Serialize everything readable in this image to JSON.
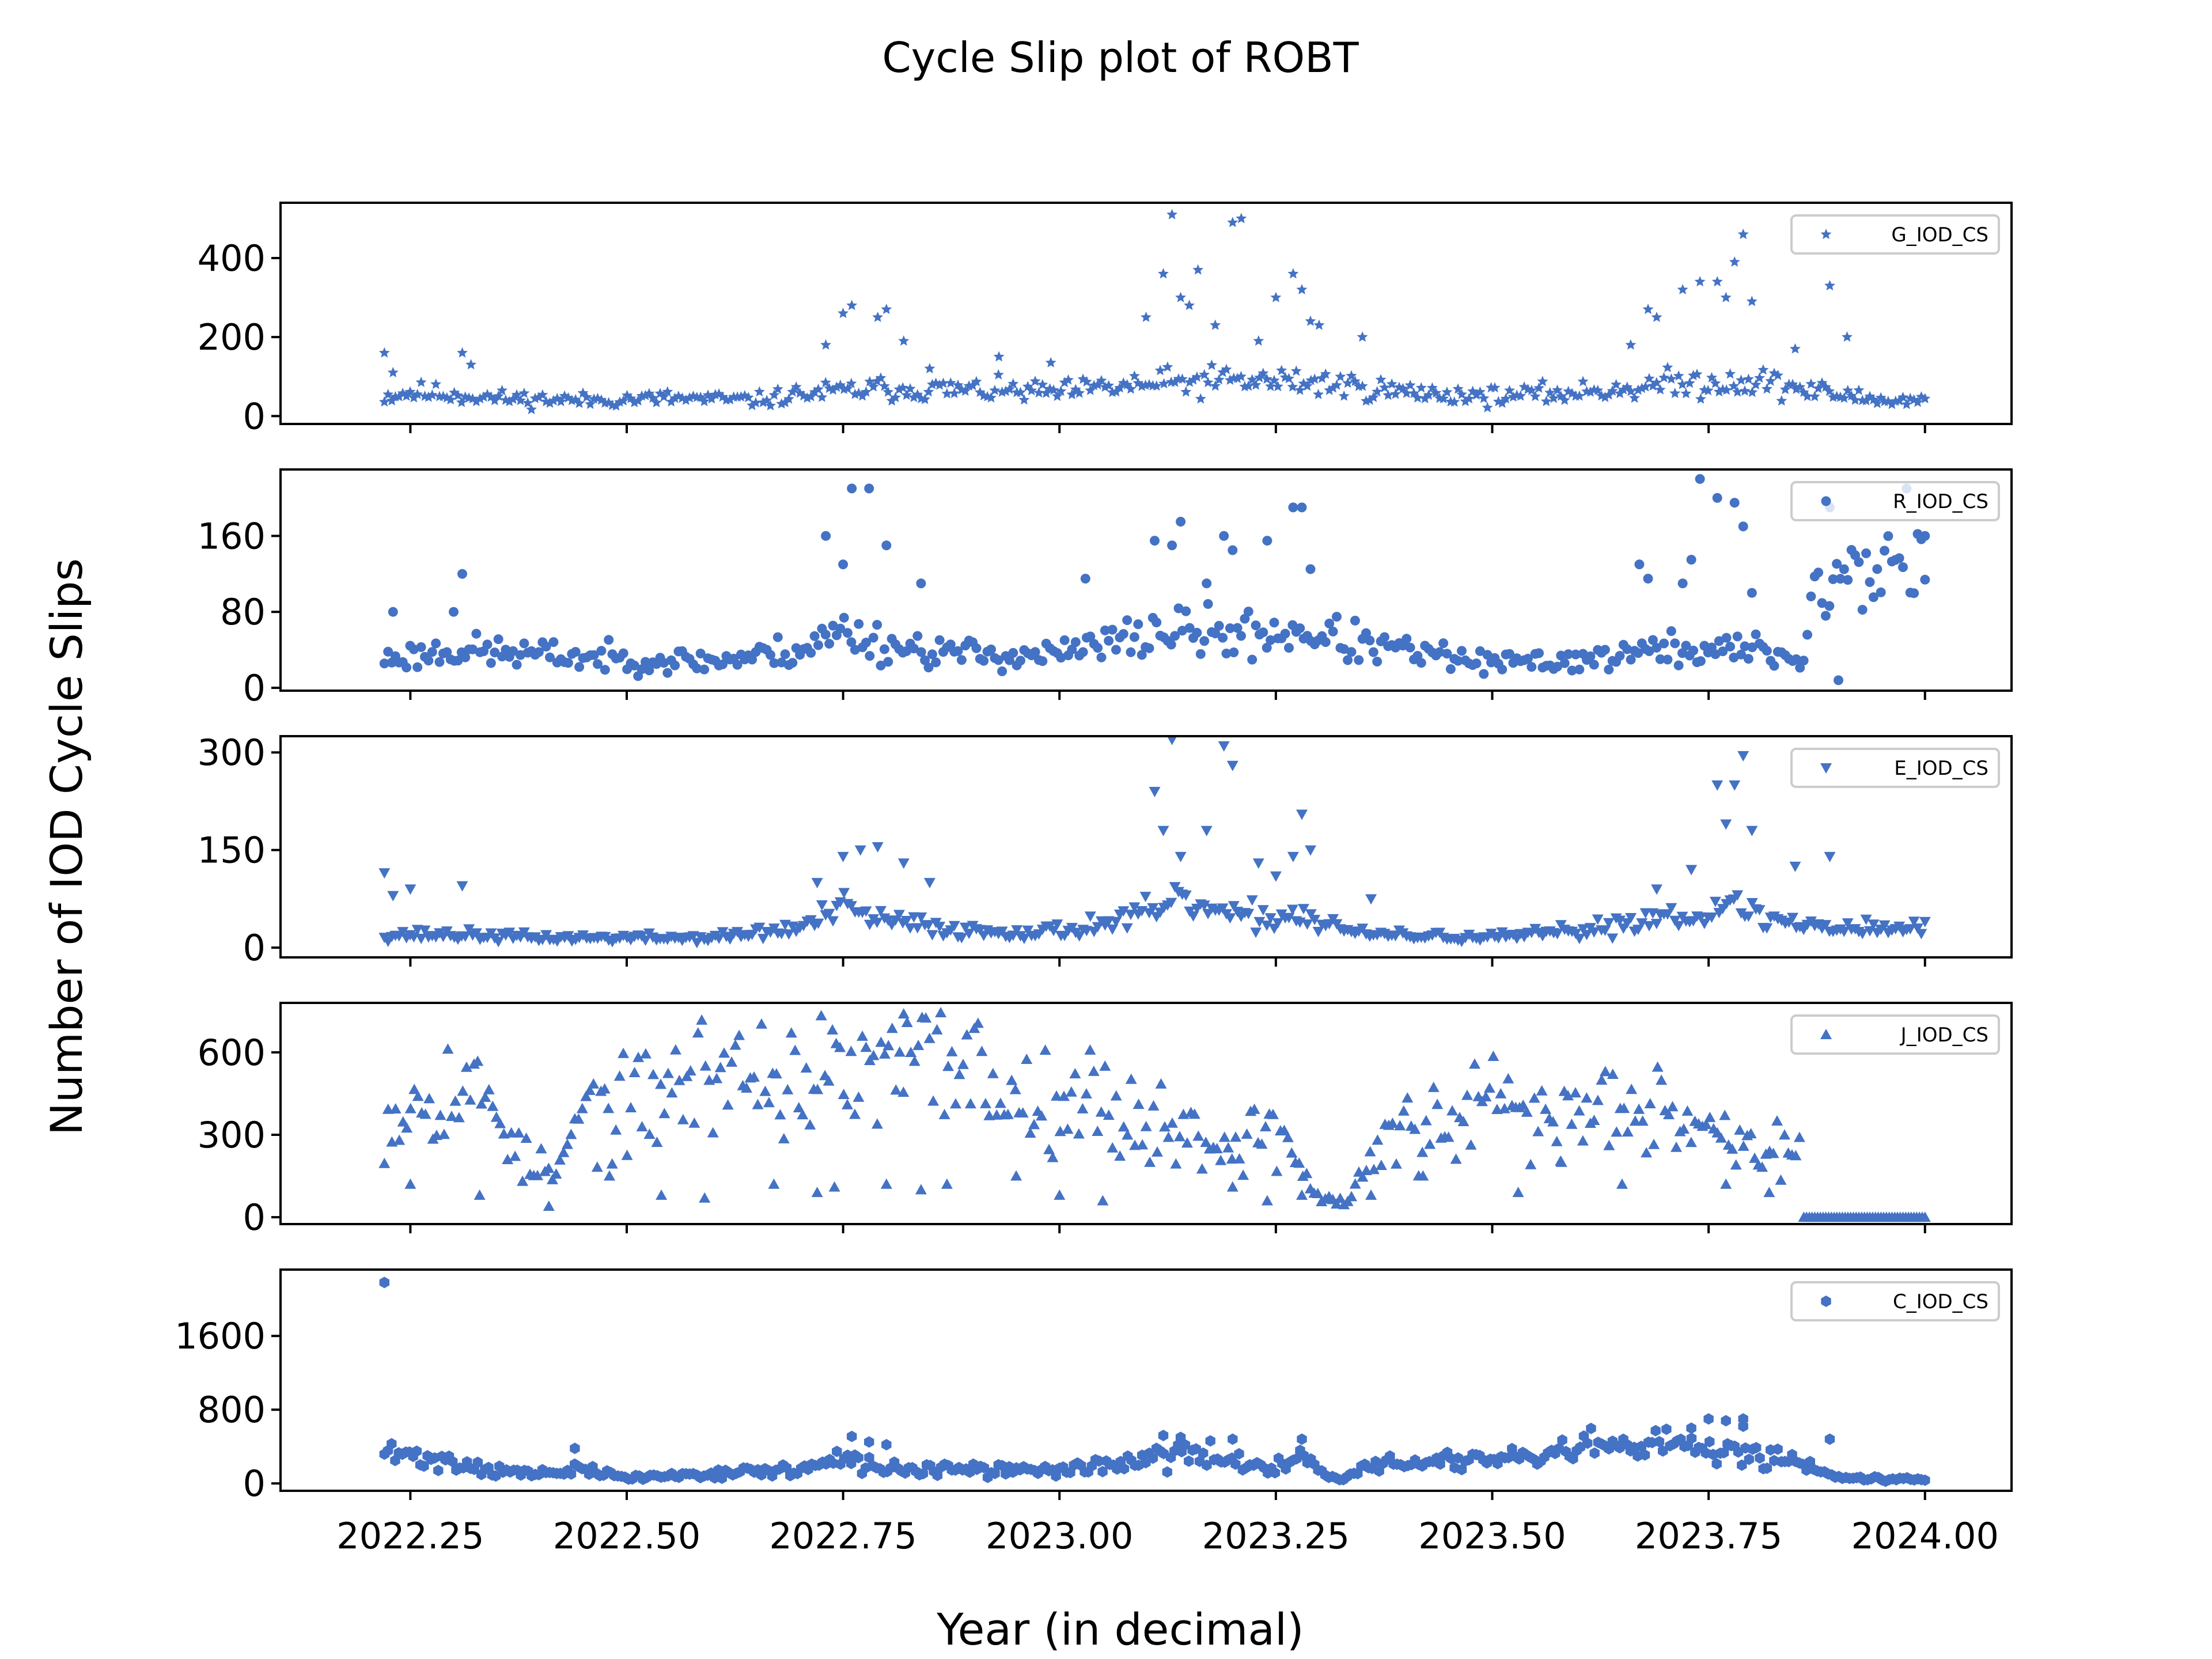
{
  "page": {
    "title": "Cycle Slip plot of ROBT",
    "xlabel": "Year (in decimal)",
    "ylabel": "Number of IOD Cycle Slips"
  },
  "colors": {
    "marker": "#4472c4",
    "axes": "#000000",
    "background": "#ffffff"
  },
  "chart_data": [
    {
      "type": "scatter",
      "series_label": "G_IOD_CS",
      "marker": "star",
      "legend_position": "top-right",
      "ylim": [
        -20,
        540
      ],
      "yticks": [
        0,
        200,
        400
      ],
      "xlim": [
        2022.1,
        2024.1
      ],
      "xticks": [
        2022.25,
        2022.5,
        2022.75,
        2023.0,
        2023.25,
        2023.5,
        2023.75,
        2024.0
      ],
      "grid": false,
      "anchors": [
        [
          2022.22,
          50
        ],
        [
          2022.25,
          60
        ],
        [
          2022.3,
          55
        ],
        [
          2022.35,
          45
        ],
        [
          2022.45,
          40
        ],
        [
          2022.55,
          45
        ],
        [
          2022.65,
          40
        ],
        [
          2022.7,
          55
        ],
        [
          2022.8,
          70
        ],
        [
          2022.9,
          65
        ],
        [
          2023.0,
          60
        ],
        [
          2023.1,
          80
        ],
        [
          2023.2,
          90
        ],
        [
          2023.3,
          85
        ],
        [
          2023.4,
          60
        ],
        [
          2023.5,
          50
        ],
        [
          2023.6,
          60
        ],
        [
          2023.7,
          80
        ],
        [
          2023.8,
          90
        ],
        [
          2023.88,
          60
        ],
        [
          2023.95,
          40
        ],
        [
          2024.0,
          40
        ]
      ],
      "spikes": [
        [
          2022.22,
          160
        ],
        [
          2022.23,
          110
        ],
        [
          2022.31,
          160
        ],
        [
          2022.32,
          130
        ],
        [
          2022.73,
          180
        ],
        [
          2022.75,
          260
        ],
        [
          2022.76,
          280
        ],
        [
          2022.79,
          250
        ],
        [
          2022.8,
          270
        ],
        [
          2022.82,
          190
        ],
        [
          2022.85,
          120
        ],
        [
          2022.93,
          150
        ],
        [
          2022.99,
          135
        ],
        [
          2023.1,
          250
        ],
        [
          2023.12,
          360
        ],
        [
          2023.13,
          510
        ],
        [
          2023.14,
          300
        ],
        [
          2023.15,
          280
        ],
        [
          2023.16,
          370
        ],
        [
          2023.18,
          230
        ],
        [
          2023.2,
          490
        ],
        [
          2023.21,
          500
        ],
        [
          2023.23,
          190
        ],
        [
          2023.25,
          300
        ],
        [
          2023.27,
          360
        ],
        [
          2023.28,
          320
        ],
        [
          2023.29,
          240
        ],
        [
          2023.3,
          230
        ],
        [
          2023.35,
          200
        ],
        [
          2023.66,
          180
        ],
        [
          2023.68,
          270
        ],
        [
          2023.69,
          250
        ],
        [
          2023.72,
          320
        ],
        [
          2023.74,
          340
        ],
        [
          2023.76,
          340
        ],
        [
          2023.77,
          300
        ],
        [
          2023.78,
          390
        ],
        [
          2023.79,
          460
        ],
        [
          2023.8,
          290
        ],
        [
          2023.85,
          170
        ],
        [
          2023.89,
          330
        ],
        [
          2023.91,
          200
        ]
      ],
      "n_points": 420,
      "seed": 11
    },
    {
      "type": "scatter",
      "series_label": "R_IOD_CS",
      "marker": "circle",
      "legend_position": "top-right",
      "ylim": [
        -3,
        230
      ],
      "yticks": [
        0,
        80,
        160
      ],
      "xlim": [
        2022.1,
        2024.1
      ],
      "xticks": [
        2022.25,
        2022.5,
        2022.75,
        2023.0,
        2023.25,
        2023.5,
        2023.75,
        2024.0
      ],
      "grid": false,
      "anchors": [
        [
          2022.22,
          30
        ],
        [
          2022.3,
          40
        ],
        [
          2022.4,
          35
        ],
        [
          2022.5,
          30
        ],
        [
          2022.6,
          28
        ],
        [
          2022.7,
          40
        ],
        [
          2022.75,
          60
        ],
        [
          2022.8,
          45
        ],
        [
          2022.9,
          35
        ],
        [
          2023.0,
          35
        ],
        [
          2023.05,
          45
        ],
        [
          2023.12,
          60
        ],
        [
          2023.2,
          55
        ],
        [
          2023.28,
          60
        ],
        [
          2023.35,
          45
        ],
        [
          2023.5,
          25
        ],
        [
          2023.6,
          30
        ],
        [
          2023.7,
          40
        ],
        [
          2023.8,
          40
        ],
        [
          2023.86,
          30
        ],
        [
          2023.87,
          100
        ],
        [
          2023.95,
          130
        ],
        [
          2024.0,
          150
        ]
      ],
      "spikes": [
        [
          2022.23,
          80
        ],
        [
          2022.3,
          80
        ],
        [
          2022.31,
          120
        ],
        [
          2022.73,
          160
        ],
        [
          2022.75,
          130
        ],
        [
          2022.76,
          210
        ],
        [
          2022.78,
          210
        ],
        [
          2022.8,
          150
        ],
        [
          2022.84,
          110
        ],
        [
          2023.03,
          115
        ],
        [
          2023.11,
          155
        ],
        [
          2023.13,
          150
        ],
        [
          2023.14,
          175
        ],
        [
          2023.17,
          110
        ],
        [
          2023.19,
          160
        ],
        [
          2023.2,
          145
        ],
        [
          2023.24,
          155
        ],
        [
          2023.27,
          190
        ],
        [
          2023.28,
          190
        ],
        [
          2023.29,
          125
        ],
        [
          2023.67,
          130
        ],
        [
          2023.68,
          115
        ],
        [
          2023.72,
          110
        ],
        [
          2023.73,
          135
        ],
        [
          2023.74,
          220
        ],
        [
          2023.76,
          200
        ],
        [
          2023.78,
          195
        ],
        [
          2023.79,
          170
        ],
        [
          2023.8,
          100
        ],
        [
          2023.89,
          190
        ],
        [
          2023.9,
          8
        ],
        [
          2024.0,
          160
        ]
      ],
      "n_points": 420,
      "seed": 23
    },
    {
      "type": "scatter",
      "series_label": "E_IOD_CS",
      "marker": "triangle-down",
      "legend_position": "top-right",
      "ylim": [
        -15,
        325
      ],
      "yticks": [
        0,
        150,
        300
      ],
      "xlim": [
        2022.1,
        2024.1
      ],
      "xticks": [
        2022.25,
        2022.5,
        2022.75,
        2023.0,
        2023.25,
        2023.5,
        2023.75,
        2024.0
      ],
      "grid": false,
      "anchors": [
        [
          2022.22,
          20
        ],
        [
          2022.3,
          20
        ],
        [
          2022.4,
          15
        ],
        [
          2022.5,
          15
        ],
        [
          2022.6,
          15
        ],
        [
          2022.7,
          30
        ],
        [
          2022.75,
          60
        ],
        [
          2022.8,
          40
        ],
        [
          2022.9,
          25
        ],
        [
          2023.0,
          25
        ],
        [
          2023.1,
          50
        ],
        [
          2023.15,
          70
        ],
        [
          2023.2,
          45
        ],
        [
          2023.28,
          50
        ],
        [
          2023.35,
          20
        ],
        [
          2023.5,
          15
        ],
        [
          2023.6,
          25
        ],
        [
          2023.7,
          50
        ],
        [
          2023.78,
          60
        ],
        [
          2023.85,
          35
        ],
        [
          2023.95,
          30
        ],
        [
          2024.0,
          30
        ]
      ],
      "spikes": [
        [
          2022.22,
          115
        ],
        [
          2022.23,
          80
        ],
        [
          2022.25,
          90
        ],
        [
          2022.31,
          95
        ],
        [
          2022.72,
          100
        ],
        [
          2022.75,
          140
        ],
        [
          2022.77,
          150
        ],
        [
          2022.79,
          155
        ],
        [
          2022.82,
          130
        ],
        [
          2022.85,
          100
        ],
        [
          2023.11,
          240
        ],
        [
          2023.12,
          180
        ],
        [
          2023.13,
          320
        ],
        [
          2023.14,
          140
        ],
        [
          2023.17,
          180
        ],
        [
          2023.19,
          310
        ],
        [
          2023.2,
          280
        ],
        [
          2023.23,
          130
        ],
        [
          2023.25,
          110
        ],
        [
          2023.27,
          140
        ],
        [
          2023.28,
          205
        ],
        [
          2023.29,
          150
        ],
        [
          2023.36,
          75
        ],
        [
          2023.69,
          90
        ],
        [
          2023.73,
          120
        ],
        [
          2023.76,
          250
        ],
        [
          2023.77,
          190
        ],
        [
          2023.78,
          250
        ],
        [
          2023.79,
          295
        ],
        [
          2023.8,
          180
        ],
        [
          2023.85,
          125
        ],
        [
          2023.89,
          140
        ]
      ],
      "n_points": 420,
      "seed": 37
    },
    {
      "type": "scatter",
      "series_label": "J_IOD_CS",
      "marker": "triangle-up",
      "legend_position": "top-right",
      "ylim": [
        -25,
        780
      ],
      "yticks": [
        0,
        300,
        600
      ],
      "xlim": [
        2022.1,
        2024.1
      ],
      "xticks": [
        2022.25,
        2022.5,
        2022.75,
        2023.0,
        2023.25,
        2023.5,
        2023.75,
        2024.0
      ],
      "grid": false,
      "anchors": [
        [
          2022.22,
          370
        ],
        [
          2022.28,
          480
        ],
        [
          2022.35,
          420
        ],
        [
          2022.38,
          200
        ],
        [
          2022.42,
          150
        ],
        [
          2022.45,
          400
        ],
        [
          2022.5,
          380
        ],
        [
          2022.55,
          470
        ],
        [
          2022.6,
          540
        ],
        [
          2022.7,
          500
        ],
        [
          2022.8,
          520
        ],
        [
          2022.88,
          600
        ],
        [
          2022.95,
          420
        ],
        [
          2023.0,
          480
        ],
        [
          2023.05,
          400
        ],
        [
          2023.1,
          350
        ],
        [
          2023.15,
          300
        ],
        [
          2023.2,
          260
        ],
        [
          2023.25,
          330
        ],
        [
          2023.3,
          70
        ],
        [
          2023.33,
          50
        ],
        [
          2023.38,
          300
        ],
        [
          2023.45,
          320
        ],
        [
          2023.5,
          420
        ],
        [
          2023.55,
          360
        ],
        [
          2023.6,
          370
        ],
        [
          2023.65,
          450
        ],
        [
          2023.7,
          430
        ],
        [
          2023.75,
          320
        ],
        [
          2023.8,
          250
        ],
        [
          2023.855,
          240
        ]
      ],
      "spikes": [
        [
          2022.25,
          120
        ],
        [
          2022.33,
          80
        ],
        [
          2022.41,
          40
        ],
        [
          2022.48,
          150
        ],
        [
          2022.54,
          80
        ],
        [
          2022.59,
          70
        ],
        [
          2022.67,
          120
        ],
        [
          2022.72,
          90
        ],
        [
          2022.74,
          110
        ],
        [
          2022.8,
          120
        ],
        [
          2022.82,
          740
        ],
        [
          2022.84,
          100
        ],
        [
          2022.87,
          120
        ],
        [
          2022.95,
          150
        ],
        [
          2023.0,
          80
        ],
        [
          2023.05,
          60
        ],
        [
          2023.2,
          110
        ],
        [
          2023.24,
          60
        ],
        [
          2023.28,
          80
        ],
        [
          2023.36,
          80
        ],
        [
          2023.42,
          150
        ],
        [
          2023.53,
          90
        ],
        [
          2023.58,
          200
        ],
        [
          2023.65,
          120
        ],
        [
          2023.77,
          120
        ],
        [
          2023.82,
          90
        ]
      ],
      "flat_segment": {
        "x_start": 2023.86,
        "x_end": 2024.0,
        "y": 0,
        "count": 45
      },
      "n_points": 380,
      "seed": 53
    },
    {
      "type": "scatter",
      "series_label": "C_IOD_CS",
      "marker": "hexagon",
      "legend_position": "top-right",
      "ylim": [
        -80,
        2320
      ],
      "yticks": [
        0,
        800,
        1600
      ],
      "xlim": [
        2022.1,
        2024.1
      ],
      "xticks": [
        2022.25,
        2022.5,
        2022.75,
        2023.0,
        2023.25,
        2023.5,
        2023.75,
        2024.0
      ],
      "xtick_labels": [
        "2022.25",
        "2022.50",
        "2022.75",
        "2023.00",
        "2023.25",
        "2023.50",
        "2023.75",
        "2024.00"
      ],
      "grid": false,
      "anchors": [
        [
          2022.22,
          330
        ],
        [
          2022.28,
          260
        ],
        [
          2022.35,
          140
        ],
        [
          2022.4,
          100
        ],
        [
          2022.45,
          150
        ],
        [
          2022.5,
          60
        ],
        [
          2022.6,
          110
        ],
        [
          2022.7,
          150
        ],
        [
          2022.75,
          250
        ],
        [
          2022.8,
          160
        ],
        [
          2022.9,
          140
        ],
        [
          2023.0,
          150
        ],
        [
          2023.1,
          250
        ],
        [
          2023.15,
          330
        ],
        [
          2023.2,
          230
        ],
        [
          2023.25,
          200
        ],
        [
          2023.28,
          280
        ],
        [
          2023.31,
          80
        ],
        [
          2023.33,
          50
        ],
        [
          2023.35,
          170
        ],
        [
          2023.45,
          260
        ],
        [
          2023.55,
          250
        ],
        [
          2023.6,
          380
        ],
        [
          2023.7,
          400
        ],
        [
          2023.78,
          370
        ],
        [
          2023.83,
          280
        ],
        [
          2023.87,
          200
        ],
        [
          2023.9,
          60
        ],
        [
          2024.0,
          50
        ]
      ],
      "spikes": [
        [
          2022.22,
          2180
        ],
        [
          2022.44,
          380
        ],
        [
          2022.76,
          510
        ],
        [
          2022.78,
          450
        ],
        [
          2022.8,
          420
        ],
        [
          2023.12,
          520
        ],
        [
          2023.14,
          500
        ],
        [
          2023.2,
          480
        ],
        [
          2023.28,
          480
        ],
        [
          2023.73,
          600
        ],
        [
          2023.75,
          700
        ],
        [
          2023.77,
          680
        ],
        [
          2023.79,
          620
        ],
        [
          2023.79,
          700
        ],
        [
          2023.89,
          480
        ]
      ],
      "n_points": 430,
      "seed": 71
    }
  ]
}
